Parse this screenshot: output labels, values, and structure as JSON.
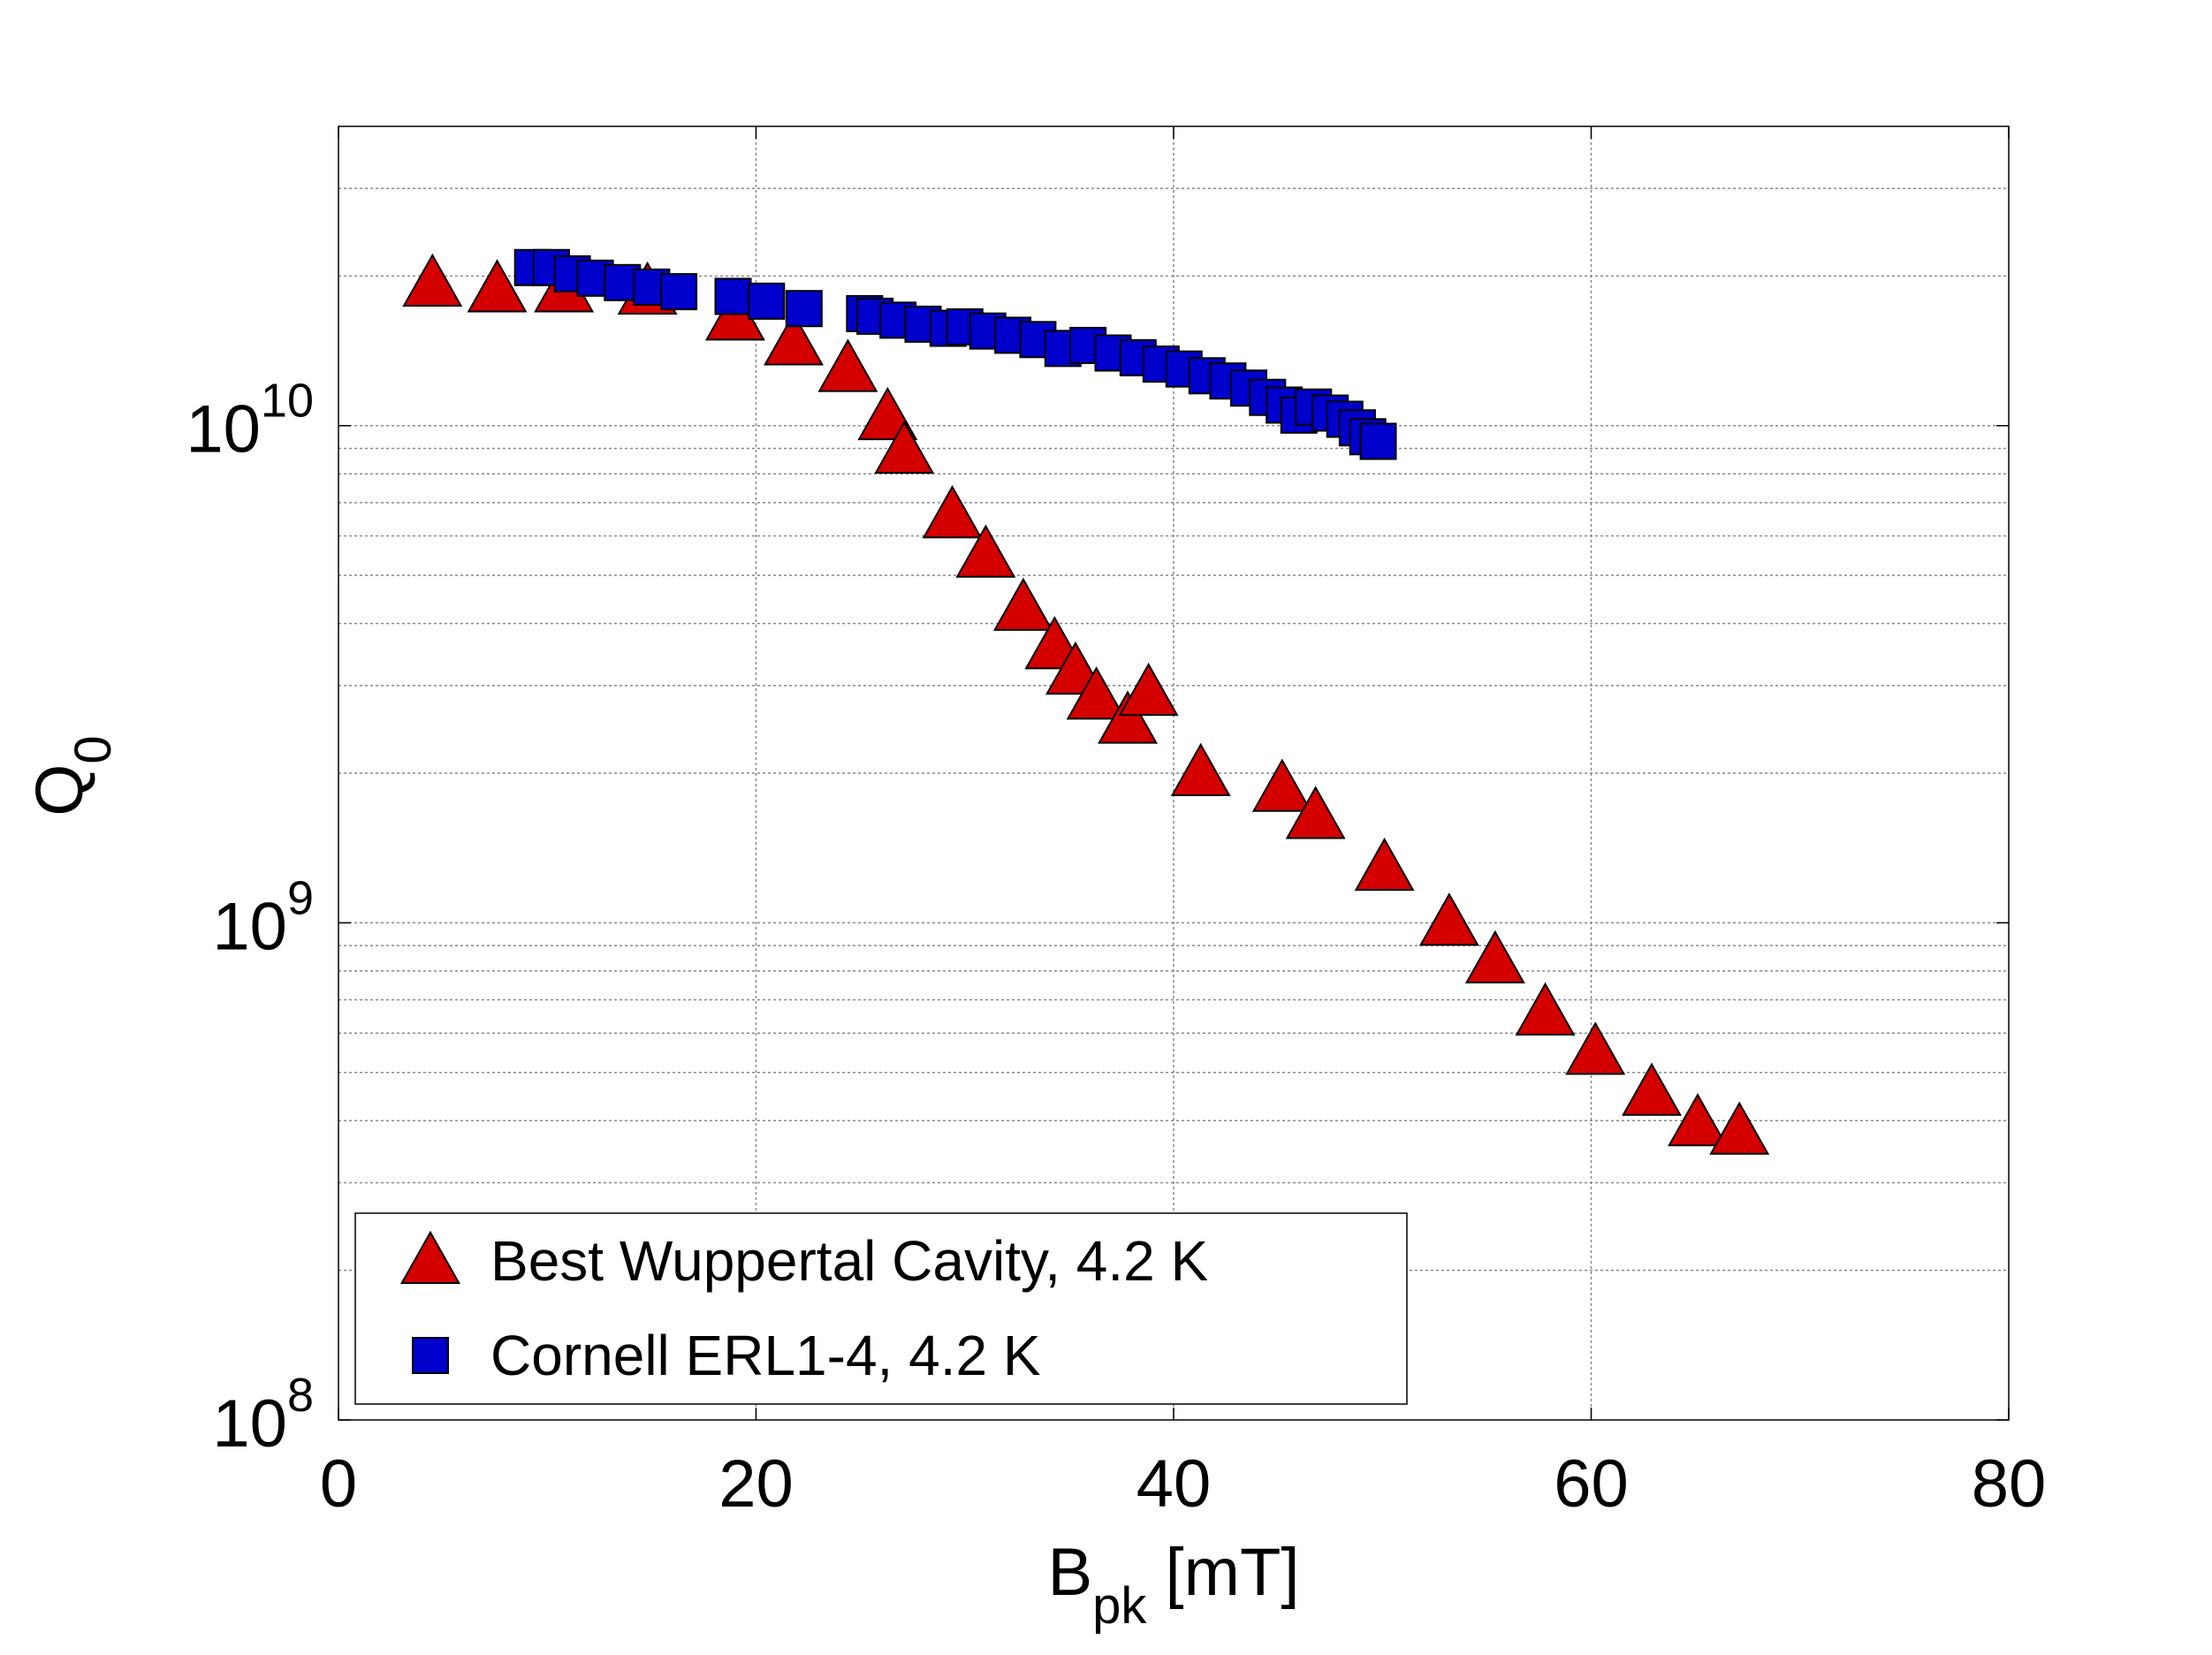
{
  "chart_data": {
    "type": "scatter",
    "title": "",
    "xlabel": {
      "main": "B",
      "sub": "pk",
      "unit": " [mT]"
    },
    "ylabel": {
      "main": "Q",
      "sub": "0"
    },
    "xlim": [
      0,
      80
    ],
    "ylim": [
      100000000,
      40000000000
    ],
    "yscale": "log",
    "grid": true,
    "legend_position": "bottom-left",
    "xticks": [
      0,
      20,
      40,
      60,
      80
    ],
    "xtick_labels": [
      "0",
      "20",
      "40",
      "60",
      "80"
    ],
    "yticks": [
      {
        "value": 100000000,
        "base": "10",
        "exp": "8"
      },
      {
        "value": 1000000000,
        "base": "10",
        "exp": "9"
      },
      {
        "value": 10000000000,
        "base": "10",
        "exp": "10"
      }
    ],
    "series": [
      {
        "name": "Best Wuppertal Cavity, 4.2 K",
        "marker": "triangle",
        "color": "#d40000",
        "points": [
          [
            4.5,
            19300000000.0
          ],
          [
            7.6,
            18800000000.0
          ],
          [
            10.8,
            18800000000.0
          ],
          [
            14.8,
            18600000000.0
          ],
          [
            19.0,
            16500000000.0
          ],
          [
            21.8,
            14700000000.0
          ],
          [
            24.4,
            13000000000.0
          ],
          [
            26.3,
            10400000000.0
          ],
          [
            27.1,
            8900000000.0
          ],
          [
            29.4,
            6600000000.0
          ],
          [
            31.0,
            5500000000.0
          ],
          [
            32.8,
            4300000000.0
          ],
          [
            34.3,
            3600000000.0
          ],
          [
            35.3,
            3200000000.0
          ],
          [
            36.3,
            2850000000.0
          ],
          [
            37.8,
            2550000000.0
          ],
          [
            38.8,
            2900000000.0
          ],
          [
            41.3,
            2000000000.0
          ],
          [
            45.2,
            1860000000.0
          ],
          [
            46.8,
            1640000000.0
          ],
          [
            50.1,
            1290000000.0
          ],
          [
            53.2,
            1000000000.0
          ],
          [
            55.4,
            840000000.0
          ],
          [
            57.8,
            660000000.0
          ],
          [
            60.2,
            550000000.0
          ],
          [
            62.9,
            455000000.0
          ],
          [
            65.1,
            395000000.0
          ],
          [
            67.1,
            380000000.0
          ]
        ]
      },
      {
        "name": "Cornell ERL1-4, 4.2 K",
        "marker": "square",
        "color": "#0000cc",
        "points": [
          [
            9.3,
            20800000000.0
          ],
          [
            10.2,
            20800000000.0
          ],
          [
            11.2,
            20200000000.0
          ],
          [
            12.3,
            19800000000.0
          ],
          [
            13.6,
            19400000000.0
          ],
          [
            15.0,
            19000000000.0
          ],
          [
            16.3,
            18600000000.0
          ],
          [
            18.9,
            18200000000.0
          ],
          [
            20.5,
            17800000000.0
          ],
          [
            22.3,
            17200000000.0
          ],
          [
            25.2,
            16800000000.0
          ],
          [
            25.7,
            16600000000.0
          ],
          [
            26.8,
            16300000000.0
          ],
          [
            28.0,
            16000000000.0
          ],
          [
            29.2,
            15700000000.0
          ],
          [
            30.0,
            15800000000.0
          ],
          [
            31.1,
            15500000000.0
          ],
          [
            32.3,
            15200000000.0
          ],
          [
            33.5,
            14900000000.0
          ],
          [
            34.7,
            14300000000.0
          ],
          [
            35.9,
            14500000000.0
          ],
          [
            37.1,
            14000000000.0
          ],
          [
            38.3,
            13700000000.0
          ],
          [
            39.4,
            13300000000.0
          ],
          [
            40.5,
            13000000000.0
          ],
          [
            41.6,
            12600000000.0
          ],
          [
            42.6,
            12300000000.0
          ],
          [
            43.6,
            11900000000.0
          ],
          [
            44.5,
            11400000000.0
          ],
          [
            45.3,
            11000000000.0
          ],
          [
            46.0,
            10500000000.0
          ],
          [
            46.7,
            10900000000.0
          ],
          [
            47.5,
            10600000000.0
          ],
          [
            48.2,
            10300000000.0
          ],
          [
            48.8,
            9900000000.0
          ],
          [
            49.3,
            9500000000.0
          ],
          [
            49.8,
            9300000000.0
          ]
        ]
      }
    ]
  }
}
